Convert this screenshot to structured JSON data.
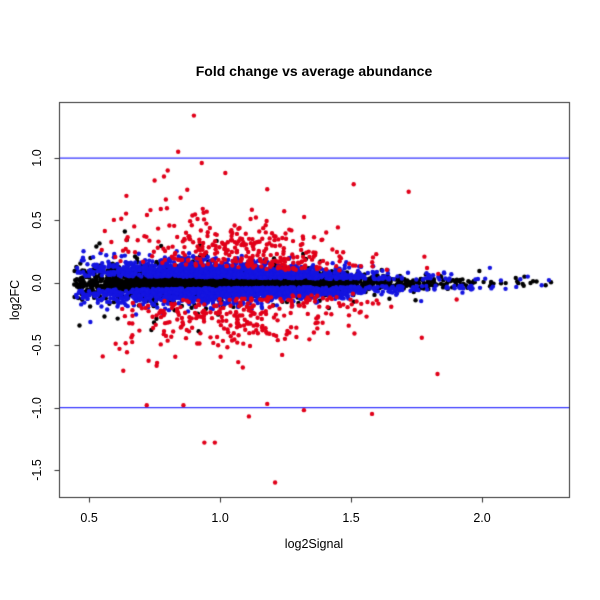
{
  "chart_data": {
    "type": "scatter",
    "title": "Fold change vs average abundance",
    "xlabel": "log2Signal",
    "ylabel": "log2FC",
    "xlim": [
      0.385,
      2.332
    ],
    "ylim": [
      -1.716,
      1.449
    ],
    "xticks": [
      0.5,
      1.0,
      1.5,
      2.0
    ],
    "yticks": [
      -1.5,
      -1.0,
      -0.5,
      0.0,
      0.5,
      1.0
    ],
    "grid": false,
    "legend": "none",
    "frame_color": "#2e2e2e",
    "hlines": [
      {
        "y": 1.0,
        "color": "#3232ff"
      },
      {
        "y": -1.0,
        "color": "#3232ff"
      }
    ],
    "seed": 20240601,
    "series": [
      {
        "name": "points-black-nonsignificant",
        "color": "#000000",
        "n": 3500,
        "x_dist": {
          "mu": 0.95,
          "sd": 0.3,
          "min": 0.44,
          "max": 2.29,
          "tail_frac": 0.28,
          "tail_base": 0.85,
          "tail_scale": 0.5
        },
        "y_dist": {
          "kind": "centered",
          "sd": 0.052,
          "wide_frac": 0.06,
          "wide_mult": 2.8
        },
        "falloff": {
          "pivot": 0.9,
          "slope": 0.55,
          "min": 0.2
        }
      },
      {
        "name": "points-blue-moderate",
        "color": "#1414e0",
        "n": 2600,
        "x_dist": {
          "mu": 0.97,
          "sd": 0.3,
          "min": 0.45,
          "max": 2.29,
          "tail_frac": 0.26,
          "tail_base": 0.85,
          "tail_scale": 0.5
        },
        "y_dist": {
          "kind": "offset",
          "base": 0.045,
          "sd": 0.062
        },
        "falloff": {
          "pivot": 0.9,
          "slope": 0.55,
          "min": 0.2
        }
      },
      {
        "name": "points-red-significant",
        "color": "#e10019",
        "n": 620,
        "x_dist": {
          "mu": 1.02,
          "sd": 0.26,
          "min": 0.53,
          "max": 1.92,
          "tail_frac": 0.1,
          "tail_base": 1.0,
          "tail_scale": 0.35
        },
        "y_dist": {
          "kind": "offset",
          "base": 0.125,
          "sd": 0.2
        },
        "falloff": {
          "pivot": 1.0,
          "slope": 0.7,
          "min": 0.25
        }
      }
    ],
    "notable_points": [
      {
        "series": 2,
        "x": 0.9,
        "y": 1.34
      },
      {
        "series": 2,
        "x": 0.84,
        "y": 1.05
      },
      {
        "series": 2,
        "x": 0.93,
        "y": 0.96
      },
      {
        "series": 2,
        "x": 0.8,
        "y": 0.9
      },
      {
        "series": 2,
        "x": 0.75,
        "y": 0.82
      },
      {
        "series": 2,
        "x": 1.02,
        "y": 0.88
      },
      {
        "series": 2,
        "x": 1.18,
        "y": 0.75
      },
      {
        "series": 2,
        "x": 1.51,
        "y": 0.79
      },
      {
        "series": 2,
        "x": 1.72,
        "y": 0.73
      },
      {
        "series": 2,
        "x": 1.78,
        "y": 0.21
      },
      {
        "series": 2,
        "x": 0.72,
        "y": -0.98
      },
      {
        "series": 2,
        "x": 0.86,
        "y": -0.98
      },
      {
        "series": 2,
        "x": 0.94,
        "y": -1.28
      },
      {
        "series": 2,
        "x": 0.98,
        "y": -1.28
      },
      {
        "series": 2,
        "x": 1.11,
        "y": -1.07
      },
      {
        "series": 2,
        "x": 1.18,
        "y": -0.97
      },
      {
        "series": 2,
        "x": 1.21,
        "y": -1.6
      },
      {
        "series": 2,
        "x": 1.32,
        "y": -1.02
      },
      {
        "series": 2,
        "x": 1.58,
        "y": -1.05
      },
      {
        "series": 2,
        "x": 1.77,
        "y": -0.44
      },
      {
        "series": 2,
        "x": 1.83,
        "y": -0.73
      },
      {
        "series": 1,
        "x": 2.03,
        "y": 0.12
      }
    ]
  }
}
